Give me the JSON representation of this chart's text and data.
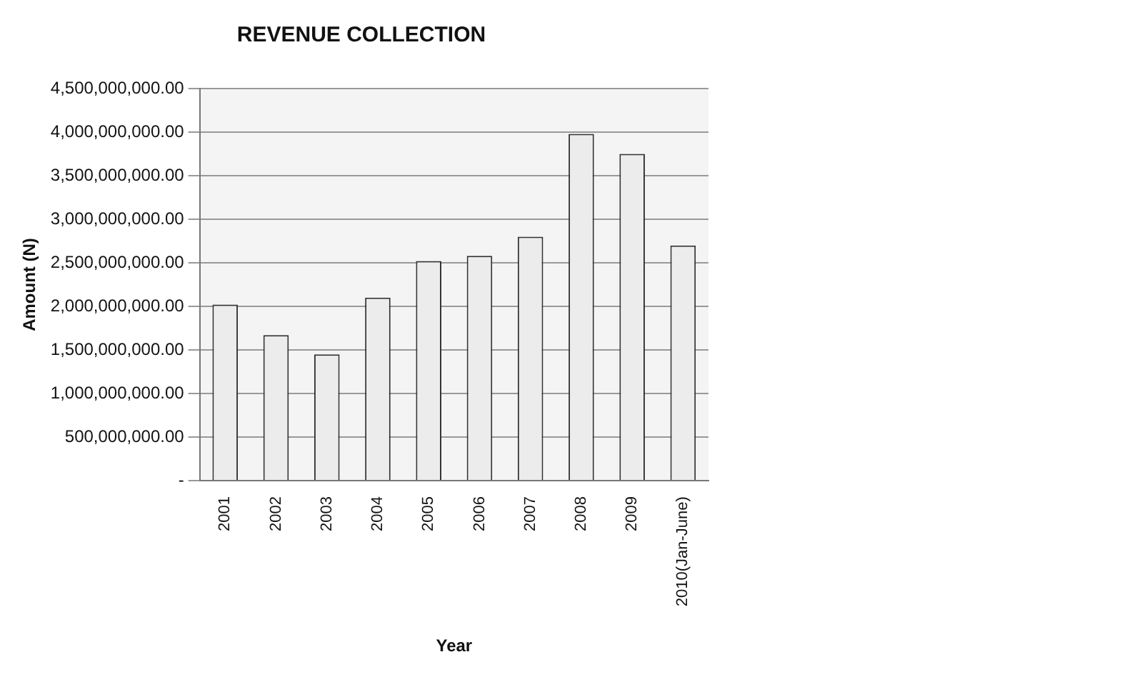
{
  "chart_data": {
    "type": "bar",
    "title": "REVENUE COLLECTION",
    "xlabel": "Year",
    "ylabel": "Amount (N)",
    "categories": [
      "2001",
      "2002",
      "2003",
      "2004",
      "2005",
      "2006",
      "2007",
      "2008",
      "2009",
      "2010(Jan-June)"
    ],
    "values": [
      2020000000,
      1670000000,
      1450000000,
      2100000000,
      2520000000,
      2580000000,
      2800000000,
      3980000000,
      3750000000,
      2700000000
    ],
    "color": "#ececec",
    "ylim": [
      0,
      4500000000
    ],
    "yticks": [
      {
        "value": 0,
        "label": "-"
      },
      {
        "value": 500000000,
        "label": "500,000,000.00"
      },
      {
        "value": 1000000000,
        "label": "1,000,000,000.00"
      },
      {
        "value": 1500000000,
        "label": "1,500,000,000.00"
      },
      {
        "value": 2000000000,
        "label": "2,000,000,000.00"
      },
      {
        "value": 2500000000,
        "label": "2,500,000,000.00"
      },
      {
        "value": 3000000000,
        "label": "3,000,000,000.00"
      },
      {
        "value": 3500000000,
        "label": "3,500,000,000.00"
      },
      {
        "value": 4000000000,
        "label": "4,000,000,000.00"
      },
      {
        "value": 4500000000,
        "label": "4,500,000,000.00"
      }
    ],
    "grid": "y",
    "legend": false
  }
}
